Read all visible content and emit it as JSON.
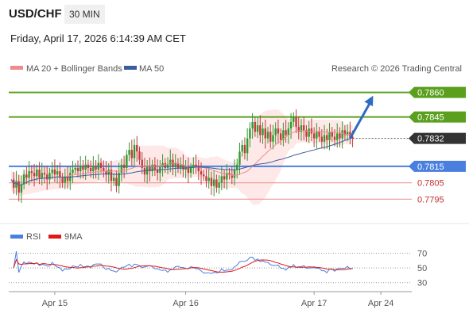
{
  "header": {
    "pair": "USD/CHF",
    "timeframe": "30 MIN",
    "datetime": "Friday, April 17, 2026 6:14:39 AM CET"
  },
  "legend": {
    "ma20": "MA 20 + Bollinger Bands",
    "ma50": "MA 50",
    "credit": "Research © 2026 Trading Central"
  },
  "colors": {
    "resistance": "#5aa01e",
    "support": "#4a7fe0",
    "pivot_dark": "#333333",
    "bull_candle": "#2f9a2f",
    "bear_candle": "#c23c3c",
    "ma20": "#f08c8c",
    "ma50": "#3a5d9c",
    "band_fill": "#fde0e0",
    "arrow": "#2e6cc4",
    "rsi": "#4a7fe0",
    "rsi_ma": "#e01818"
  },
  "chart_data": {
    "type": "candlestick",
    "price_range": [
      0.7786,
      0.7868
    ],
    "levels": [
      {
        "value": "0.7860",
        "price": 0.786,
        "style": "resistance"
      },
      {
        "value": "0.7845",
        "price": 0.7845,
        "style": "resistance"
      },
      {
        "value": "0.7832",
        "price": 0.7832,
        "style": "last"
      },
      {
        "value": "0.7815",
        "price": 0.7815,
        "style": "support"
      },
      {
        "value": "0.7805",
        "price": 0.7805,
        "style": "minor"
      },
      {
        "value": "0.7795",
        "price": 0.7795,
        "style": "minor"
      }
    ],
    "x_ticks": [
      "Apr 15",
      "Apr 16",
      "Apr 17",
      "Apr 24"
    ],
    "x_tick_index": [
      17,
      68,
      118,
      144
    ],
    "close_path": [
      0.7807,
      0.7802,
      0.7806,
      0.7799,
      0.7804,
      0.781,
      0.7808,
      0.7812,
      0.7811,
      0.7809,
      0.7813,
      0.7808,
      0.7811,
      0.781,
      0.7807,
      0.7811,
      0.7813,
      0.781,
      0.7812,
      0.7808,
      0.7805,
      0.7809,
      0.7806,
      0.7811,
      0.7813,
      0.7814,
      0.7812,
      0.7815,
      0.7813,
      0.7816,
      0.7814,
      0.7812,
      0.7815,
      0.7813,
      0.7817,
      0.7814,
      0.7812,
      0.781,
      0.7813,
      0.7806,
      0.7808,
      0.7803,
      0.7811,
      0.7816,
      0.7814,
      0.7822,
      0.7825,
      0.782,
      0.7828,
      0.7824,
      0.7819,
      0.7814,
      0.781,
      0.7815,
      0.7812,
      0.7816,
      0.7813,
      0.7811,
      0.7815,
      0.7817,
      0.7814,
      0.7816,
      0.7819,
      0.7815,
      0.7817,
      0.7814,
      0.7816,
      0.7813,
      0.7815,
      0.7811,
      0.7814,
      0.7816,
      0.7815,
      0.7812,
      0.781,
      0.7809,
      0.7806,
      0.7808,
      0.7803,
      0.7807,
      0.7802,
      0.7805,
      0.7809,
      0.7807,
      0.7811,
      0.781,
      0.7808,
      0.7813,
      0.7816,
      0.7824,
      0.7828,
      0.7823,
      0.7832,
      0.7838,
      0.7842,
      0.7836,
      0.784,
      0.7834,
      0.7838,
      0.7832,
      0.7836,
      0.783,
      0.7834,
      0.7838,
      0.7835,
      0.7831,
      0.7837,
      0.7834,
      0.7838,
      0.7842,
      0.7845,
      0.7839,
      0.7836,
      0.784,
      0.7837,
      0.7833,
      0.7838,
      0.7835,
      0.7832,
      0.7836,
      0.7833,
      0.783,
      0.7834,
      0.7831,
      0.7836,
      0.7833,
      0.7831,
      0.7835,
      0.7832,
      0.7837,
      0.7834,
      0.7836,
      0.7833,
      0.7832
    ],
    "forecast_arrow": {
      "from_index": 132,
      "from_price": 0.7832,
      "to_index": 141,
      "to_price": 0.7858
    },
    "rsi": {
      "legend": [
        "RSI",
        "9MA"
      ],
      "ticks": [
        "70",
        "50",
        "30"
      ],
      "range": [
        20,
        78
      ]
    }
  }
}
